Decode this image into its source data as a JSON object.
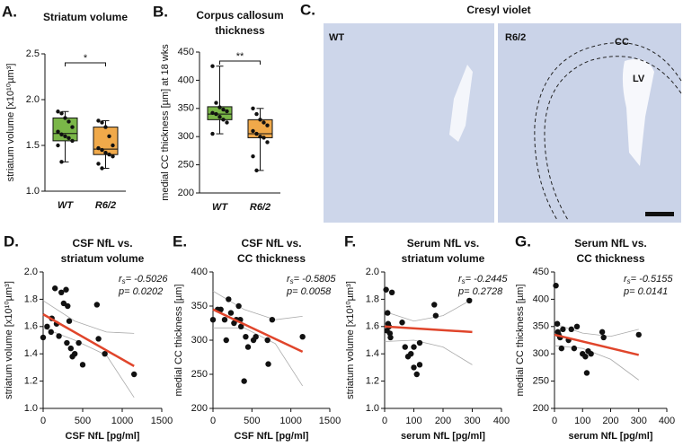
{
  "chart_data": [
    {
      "type": "box",
      "panel": "A.",
      "title": [
        "Striatum volume"
      ],
      "ylabel": "striatum volume [x10¹⁰µm³]",
      "categories": [
        "WT",
        "R6/2"
      ],
      "ylim": [
        1.0,
        2.5
      ],
      "yticks": [
        {
          "value": 1.0,
          "label": "1.0"
        },
        1.5,
        {
          "value": 2.0,
          "label": "2.0"
        },
        2.5
      ],
      "significance": "*",
      "boxes": [
        {
          "color": "#7ab648",
          "min": 1.32,
          "q1": 1.55,
          "median": 1.63,
          "q3": 1.8,
          "max": 1.87,
          "points": [
            1.87,
            1.85,
            1.8,
            1.76,
            1.7,
            1.65,
            1.62,
            1.6,
            1.58,
            1.55,
            1.5,
            1.32
          ]
        },
        {
          "color": "#f0a94a",
          "min": 1.25,
          "q1": 1.4,
          "median": 1.46,
          "q3": 1.7,
          "max": 1.77,
          "points": [
            1.77,
            1.75,
            1.7,
            1.6,
            1.5,
            1.47,
            1.45,
            1.42,
            1.4,
            1.38,
            1.3,
            1.25
          ]
        }
      ]
    },
    {
      "type": "box",
      "panel": "B.",
      "title": [
        "Corpus callosum",
        "thickness"
      ],
      "ylabel": "medial CC thickness [µm] at 18 wks",
      "categories": [
        "WT",
        "R6/2"
      ],
      "ylim": [
        200,
        450
      ],
      "yticks": [
        200,
        250,
        300,
        350,
        400,
        450
      ],
      "significance": "**",
      "boxes": [
        {
          "color": "#7ab648",
          "min": 305,
          "q1": 330,
          "median": 340,
          "q3": 353,
          "max": 425,
          "points": [
            425,
            360,
            352,
            348,
            345,
            342,
            340,
            335,
            330,
            325,
            305
          ]
        },
        {
          "color": "#f0a94a",
          "min": 240,
          "q1": 298,
          "median": 305,
          "q3": 330,
          "max": 350,
          "points": [
            350,
            340,
            330,
            325,
            320,
            310,
            305,
            300,
            298,
            290,
            265,
            240
          ]
        }
      ]
    },
    {
      "type": "scatter",
      "panel": "D.",
      "title": [
        "CSF NfL vs.",
        "striatum volume"
      ],
      "xlabel": "CSF NfL [pg/ml]",
      "ylabel": "striatum volume [x10¹⁰µm³]",
      "xlim": [
        0,
        1500
      ],
      "xticks": [
        0,
        500,
        1000,
        1500
      ],
      "ylim": [
        1.0,
        2.0
      ],
      "yticks": [
        {
          "value": 1.0,
          "label": "1.0"
        },
        1.2,
        1.4,
        1.6,
        1.8,
        {
          "value": 2.0,
          "label": "2.0"
        }
      ],
      "stats": [
        {
          "symbol": "r",
          "subscript": "s",
          "text": "= -0.5026"
        },
        {
          "symbol": "p",
          "text": "= 0.0202"
        }
      ],
      "x": [
        0,
        50,
        100,
        150,
        170,
        200,
        230,
        260,
        290,
        310,
        330,
        350,
        370,
        400,
        450,
        500,
        680,
        700,
        780,
        1150,
        110,
        300
      ],
      "y": [
        1.52,
        1.6,
        1.56,
        1.88,
        1.62,
        1.53,
        1.85,
        1.77,
        1.87,
        1.75,
        1.64,
        1.44,
        1.38,
        1.4,
        1.48,
        1.32,
        1.76,
        1.51,
        1.4,
        1.25,
        1.66,
        1.48
      ],
      "fit": {
        "color": "#e0452b",
        "x": [
          0,
          1150
        ],
        "y": [
          1.69,
          1.31
        ]
      },
      "ci_upper": {
        "x": [
          0,
          400,
          800,
          1150
        ],
        "y": [
          1.79,
          1.64,
          1.56,
          1.55
        ]
      },
      "ci_lower": {
        "x": [
          0,
          400,
          800,
          1150
        ],
        "y": [
          1.59,
          1.5,
          1.39,
          1.08
        ]
      }
    },
    {
      "type": "scatter",
      "panel": "E.",
      "title": [
        "CSF NfL vs.",
        "CC thickness"
      ],
      "xlabel": "CSF NfL [pg/ml]",
      "ylabel": "medial CC thickness [µm]",
      "xlim": [
        0,
        1500
      ],
      "xticks": [
        0,
        500,
        1000,
        1500
      ],
      "ylim": [
        200,
        400
      ],
      "yticks": [
        200,
        250,
        300,
        350,
        400
      ],
      "stats": [
        {
          "symbol": "r",
          "subscript": "s",
          "text": "= -0.5805"
        },
        {
          "symbol": "p",
          "text": "= 0.0058"
        }
      ],
      "x": [
        0,
        60,
        100,
        150,
        200,
        230,
        270,
        300,
        330,
        360,
        400,
        420,
        450,
        520,
        550,
        700,
        710,
        760,
        1150,
        170,
        350
      ],
      "y": [
        330,
        345,
        345,
        330,
        360,
        340,
        325,
        330,
        350,
        320,
        240,
        305,
        290,
        300,
        305,
        300,
        265,
        330,
        305,
        300,
        330
      ],
      "fit": {
        "color": "#e0452b",
        "x": [
          0,
          1150
        ],
        "y": [
          345,
          283
        ]
      },
      "ci_upper": {
        "x": [
          0,
          400,
          800,
          1150
        ],
        "y": [
          372,
          345,
          330,
          335
        ]
      },
      "ci_lower": {
        "x": [
          0,
          400,
          800,
          1150
        ],
        "y": [
          318,
          318,
          295,
          233
        ]
      }
    },
    {
      "type": "scatter",
      "panel": "F.",
      "title": [
        "Serum NfL vs.",
        "striatum volume"
      ],
      "xlabel": "serum NfL [pg/ml]",
      "ylabel": "striatum volume [x10¹⁰µm³]",
      "xlim": [
        0,
        400
      ],
      "xticks": [
        0,
        100,
        200,
        300,
        400
      ],
      "ylim": [
        1.0,
        2.0
      ],
      "yticks": [
        {
          "value": 1.0,
          "label": "1.0"
        },
        1.2,
        1.4,
        1.6,
        1.8,
        {
          "value": 2.0,
          "label": "2.0"
        }
      ],
      "stats": [
        {
          "symbol": "r",
          "subscript": "s",
          "text": "= -0.2445"
        },
        {
          "symbol": "p",
          "text": "= 0.2728"
        }
      ],
      "x": [
        5,
        10,
        12,
        15,
        18,
        20,
        25,
        8,
        60,
        70,
        80,
        90,
        100,
        110,
        120,
        100,
        170,
        175,
        290,
        120
      ],
      "y": [
        1.87,
        1.7,
        1.62,
        1.6,
        1.55,
        1.52,
        1.85,
        1.57,
        1.63,
        1.45,
        1.38,
        1.4,
        1.3,
        1.25,
        1.48,
        1.45,
        1.76,
        1.68,
        1.79,
        1.32
      ],
      "fit": {
        "color": "#e0452b",
        "x": [
          0,
          300
        ],
        "y": [
          1.6,
          1.56
        ]
      },
      "ci_upper": {
        "x": [
          0,
          100,
          200,
          300
        ],
        "y": [
          1.71,
          1.64,
          1.68,
          1.8
        ]
      },
      "ci_lower": {
        "x": [
          0,
          100,
          200,
          300
        ],
        "y": [
          1.49,
          1.5,
          1.45,
          1.32
        ]
      }
    },
    {
      "type": "scatter",
      "panel": "G.",
      "title": [
        "Serum NfL vs.",
        "CC thickness"
      ],
      "xlabel": "serum NfL [pg/ml]",
      "ylabel": "medial CC thickness [µm]",
      "xlim": [
        0,
        400
      ],
      "xticks": [
        0,
        100,
        200,
        300,
        400
      ],
      "ylim": [
        200,
        450
      ],
      "yticks": [
        200,
        250,
        300,
        350,
        400,
        450
      ],
      "stats": [
        {
          "symbol": "r",
          "subscript": "s",
          "text": "= -0.5155"
        },
        {
          "symbol": "p",
          "text": "= 0.0141"
        }
      ],
      "x": [
        5,
        10,
        12,
        15,
        20,
        25,
        30,
        50,
        60,
        70,
        80,
        100,
        110,
        115,
        120,
        130,
        170,
        175,
        300,
        20
      ],
      "y": [
        425,
        355,
        340,
        335,
        330,
        310,
        345,
        325,
        345,
        310,
        350,
        300,
        295,
        265,
        305,
        300,
        340,
        330,
        335,
        330
      ],
      "fit": {
        "color": "#e0452b",
        "x": [
          0,
          300
        ],
        "y": [
          335,
          298
        ]
      },
      "ci_upper": {
        "x": [
          0,
          100,
          200,
          300
        ],
        "y": [
          355,
          338,
          332,
          345
        ]
      },
      "ci_lower": {
        "x": [
          0,
          100,
          200,
          300
        ],
        "y": [
          315,
          310,
          290,
          252
        ]
      }
    }
  ],
  "image_panel": {
    "panel": "C.",
    "title": "Cresyl violet",
    "images": [
      {
        "label": "WT"
      },
      {
        "label": "R6/2",
        "annotations": [
          "CC",
          "LV"
        ]
      }
    ]
  }
}
